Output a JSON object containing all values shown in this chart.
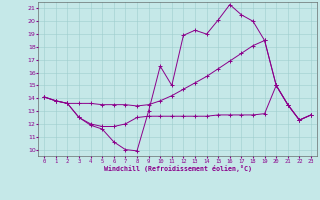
{
  "bg_color": "#c5e8e8",
  "line_color": "#8b008b",
  "grid_color": "#9ecece",
  "hours": [
    0,
    1,
    2,
    3,
    4,
    5,
    6,
    7,
    8,
    9,
    10,
    11,
    12,
    13,
    14,
    15,
    16,
    17,
    18,
    19,
    20,
    21,
    22,
    23
  ],
  "temp": [
    14.1,
    13.8,
    13.6,
    12.5,
    11.9,
    11.6,
    10.6,
    10.0,
    9.9,
    13.0,
    16.5,
    15.0,
    18.9,
    19.3,
    19.0,
    20.1,
    21.3,
    20.5,
    20.0,
    18.5,
    15.0,
    13.5,
    12.3,
    12.7
  ],
  "windchill": [
    14.1,
    13.8,
    13.6,
    13.6,
    13.6,
    13.5,
    13.5,
    13.5,
    13.4,
    13.5,
    13.8,
    14.2,
    14.7,
    15.2,
    15.7,
    16.3,
    16.9,
    17.5,
    18.1,
    18.5,
    15.0,
    13.5,
    12.3,
    12.7
  ],
  "flat_line": [
    14.1,
    13.8,
    13.6,
    12.5,
    12.0,
    11.8,
    11.8,
    12.0,
    12.5,
    12.6,
    12.6,
    12.6,
    12.6,
    12.6,
    12.6,
    12.7,
    12.7,
    12.7,
    12.7,
    12.8,
    15.0,
    13.5,
    12.3,
    12.7
  ],
  "ylim": [
    9.5,
    21.5
  ],
  "xlim": [
    -0.5,
    23.5
  ],
  "yticks": [
    10,
    11,
    12,
    13,
    14,
    15,
    16,
    17,
    18,
    19,
    20,
    21
  ],
  "xlabel": "Windchill (Refroidissement éolien,°C)"
}
